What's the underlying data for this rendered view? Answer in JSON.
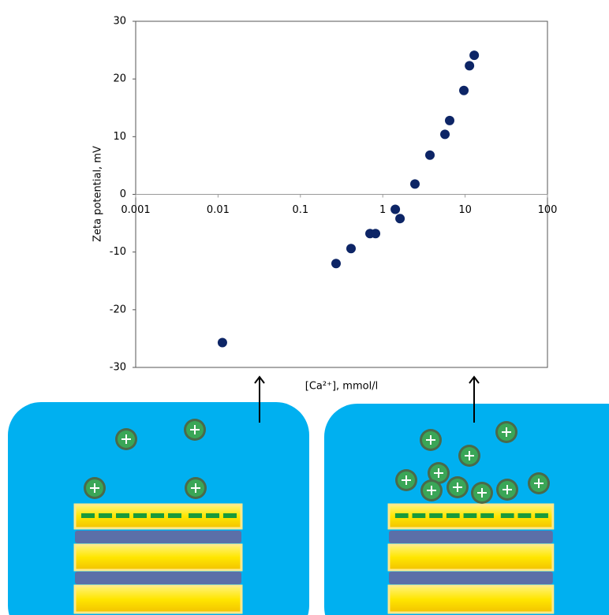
{
  "chart_data": {
    "type": "scatter",
    "x_label": "[Ca²⁺], mmol/l",
    "y_label": "Zeta potential, mV",
    "x_log": true,
    "color": "#0d2566",
    "x": [
      0.0113,
      0.271,
      0.412,
      0.7,
      0.817,
      1.42,
      1.62,
      2.46,
      3.74,
      5.69,
      6.49,
      9.66,
      11.3,
      12.9
    ],
    "values": [
      -25.7,
      -12.0,
      -9.4,
      -6.8,
      -6.8,
      -2.6,
      -4.2,
      1.8,
      6.8,
      10.4,
      12.8,
      18.0,
      22.3,
      24.1
    ],
    "xlim": [
      0.001,
      100
    ],
    "xticks": [
      0.001,
      0.01,
      0.1,
      1,
      10,
      100
    ],
    "ylim": [
      -30,
      30
    ],
    "yticks": [
      -30,
      -20,
      -10,
      0,
      10,
      20,
      30
    ]
  }
}
